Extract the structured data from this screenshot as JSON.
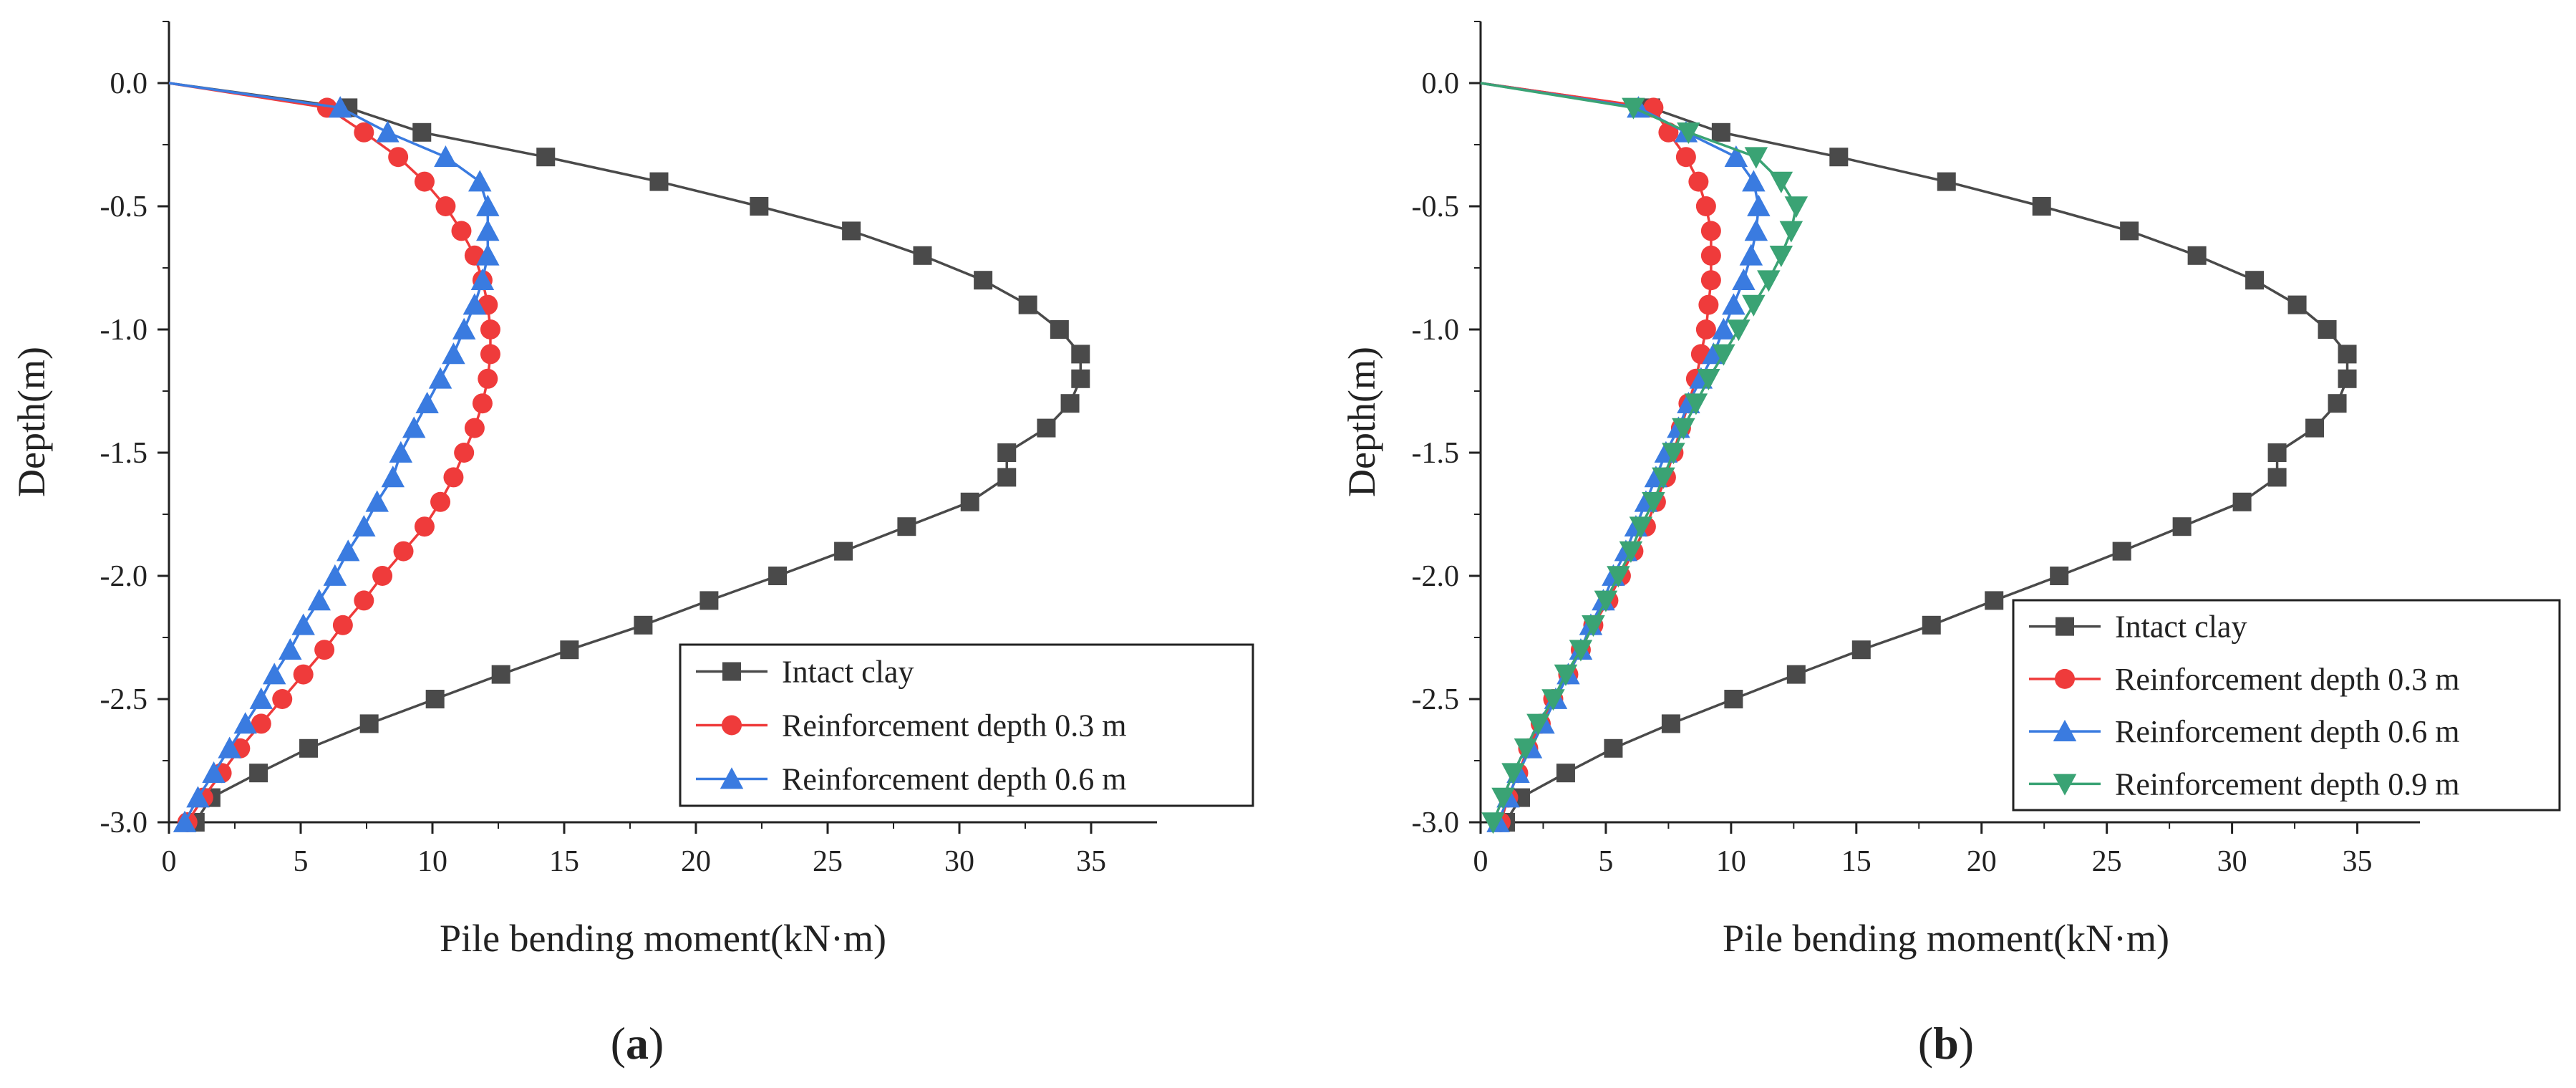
{
  "figure": {
    "panels": [
      {
        "id": "a",
        "label_open": "(",
        "label_letter": "a",
        "label_close": ")",
        "xlabel": "Pile bending moment(kN·m)",
        "ylabel": "Depth(m)"
      },
      {
        "id": "b",
        "label_open": "(",
        "label_letter": "b",
        "label_close": ")",
        "xlabel": "Pile bending moment(kN·m)",
        "ylabel": "Depth(m)"
      }
    ]
  },
  "chart_data": [
    {
      "type": "line",
      "title": "",
      "xlabel": "Pile bending moment(kN·m)",
      "ylabel": "Depth(m)",
      "xlim": [
        0,
        37.5
      ],
      "ylim": [
        -3.0,
        0.25
      ],
      "xticks": [
        0,
        5,
        10,
        15,
        20,
        25,
        30,
        35
      ],
      "yticks": [
        0.0,
        -0.5,
        -1.0,
        -1.5,
        -2.0,
        -2.5,
        -3.0
      ],
      "ytick_labels": [
        "0.0",
        "-0.5",
        "-1.0",
        "-1.5",
        "-2.0",
        "-2.5",
        "-3.0"
      ],
      "legend_position": "bottom-right",
      "series": [
        {
          "name": "Intact clay",
          "color": "#4a4a4a",
          "marker": "square",
          "x": [
            0,
            6.8,
            9.6,
            14.3,
            18.6,
            22.4,
            25.9,
            28.6,
            30.9,
            32.6,
            33.8,
            34.6,
            34.6,
            34.2,
            33.3,
            31.8,
            31.8,
            30.4,
            28.0,
            25.6,
            23.1,
            20.5,
            18.0,
            15.2,
            12.6,
            10.1,
            7.6,
            5.3,
            3.4,
            1.6,
            1.0
          ],
          "y": [
            0,
            -0.1,
            -0.2,
            -0.3,
            -0.4,
            -0.5,
            -0.6,
            -0.7,
            -0.8,
            -0.9,
            -1.0,
            -1.1,
            -1.2,
            -1.3,
            -1.4,
            -1.5,
            -1.6,
            -1.7,
            -1.8,
            -1.9,
            -2.0,
            -2.1,
            -2.2,
            -2.3,
            -2.4,
            -2.5,
            -2.6,
            -2.7,
            -2.8,
            -2.9,
            -3.0
          ]
        },
        {
          "name": "Reinforcement depth 0.3 m",
          "color": "#ef3b3b",
          "marker": "circle",
          "x": [
            0,
            6.0,
            7.4,
            8.7,
            9.7,
            10.5,
            11.1,
            11.6,
            11.9,
            12.1,
            12.2,
            12.2,
            12.1,
            11.9,
            11.6,
            11.2,
            10.8,
            10.3,
            9.7,
            8.9,
            8.1,
            7.4,
            6.6,
            5.9,
            5.1,
            4.3,
            3.5,
            2.7,
            2.0,
            1.3,
            0.7
          ],
          "y": [
            0,
            -0.1,
            -0.2,
            -0.3,
            -0.4,
            -0.5,
            -0.6,
            -0.7,
            -0.8,
            -0.9,
            -1.0,
            -1.1,
            -1.2,
            -1.3,
            -1.4,
            -1.5,
            -1.6,
            -1.7,
            -1.8,
            -1.9,
            -2.0,
            -2.1,
            -2.2,
            -2.3,
            -2.4,
            -2.5,
            -2.6,
            -2.7,
            -2.8,
            -2.9,
            -3.0
          ]
        },
        {
          "name": "Reinforcement depth 0.6 m",
          "color": "#3a7be0",
          "marker": "triangle-up",
          "x": [
            0,
            6.5,
            8.3,
            10.5,
            11.8,
            12.1,
            12.1,
            12.1,
            11.9,
            11.6,
            11.2,
            10.8,
            10.3,
            9.8,
            9.3,
            8.8,
            8.5,
            7.9,
            7.4,
            6.8,
            6.3,
            5.7,
            5.1,
            4.6,
            4.0,
            3.5,
            2.9,
            2.3,
            1.7,
            1.1,
            0.6
          ],
          "y": [
            0,
            -0.1,
            -0.2,
            -0.3,
            -0.4,
            -0.5,
            -0.6,
            -0.7,
            -0.8,
            -0.9,
            -1.0,
            -1.1,
            -1.2,
            -1.3,
            -1.4,
            -1.5,
            -1.6,
            -1.7,
            -1.8,
            -1.9,
            -2.0,
            -2.1,
            -2.2,
            -2.3,
            -2.4,
            -2.5,
            -2.6,
            -2.7,
            -2.8,
            -2.9,
            -3.0
          ]
        }
      ]
    },
    {
      "type": "line",
      "title": "",
      "xlabel": "Pile bending moment(kN·m)",
      "ylabel": "Depth(m)",
      "xlim": [
        0,
        37.5
      ],
      "ylim": [
        -3.0,
        0.25
      ],
      "xticks": [
        0,
        5,
        10,
        15,
        20,
        25,
        30,
        35
      ],
      "yticks": [
        0.0,
        -0.5,
        -1.0,
        -1.5,
        -2.0,
        -2.5,
        -3.0
      ],
      "ytick_labels": [
        "0.0",
        "-0.5",
        "-1.0",
        "-1.5",
        "-2.0",
        "-2.5",
        "-3.0"
      ],
      "legend_position": "bottom-right",
      "series": [
        {
          "name": "Intact clay",
          "color": "#4a4a4a",
          "marker": "square",
          "x": [
            0,
            6.8,
            9.6,
            14.3,
            18.6,
            22.4,
            25.9,
            28.6,
            30.9,
            32.6,
            33.8,
            34.6,
            34.6,
            34.2,
            33.3,
            31.8,
            31.8,
            30.4,
            28.0,
            25.6,
            23.1,
            20.5,
            18.0,
            15.2,
            12.6,
            10.1,
            7.6,
            5.3,
            3.4,
            1.6,
            1.0
          ],
          "y": [
            0,
            -0.1,
            -0.2,
            -0.3,
            -0.4,
            -0.5,
            -0.6,
            -0.7,
            -0.8,
            -0.9,
            -1.0,
            -1.1,
            -1.2,
            -1.3,
            -1.4,
            -1.5,
            -1.6,
            -1.7,
            -1.8,
            -1.9,
            -2.0,
            -2.1,
            -2.2,
            -2.3,
            -2.4,
            -2.5,
            -2.6,
            -2.7,
            -2.8,
            -2.9,
            -3.0
          ]
        },
        {
          "name": "Reinforcement depth 0.3 m",
          "color": "#ef3b3b",
          "marker": "circle",
          "x": [
            0,
            6.9,
            7.5,
            8.2,
            8.7,
            9.0,
            9.2,
            9.2,
            9.2,
            9.1,
            9.0,
            8.8,
            8.6,
            8.3,
            8.0,
            7.7,
            7.4,
            7.0,
            6.6,
            6.1,
            5.6,
            5.1,
            4.5,
            4.0,
            3.5,
            2.9,
            2.4,
            1.9,
            1.5,
            1.1,
            0.8
          ],
          "y": [
            0,
            -0.1,
            -0.2,
            -0.3,
            -0.4,
            -0.5,
            -0.6,
            -0.7,
            -0.8,
            -0.9,
            -1.0,
            -1.1,
            -1.2,
            -1.3,
            -1.4,
            -1.5,
            -1.6,
            -1.7,
            -1.8,
            -1.9,
            -2.0,
            -2.1,
            -2.2,
            -2.3,
            -2.4,
            -2.5,
            -2.6,
            -2.7,
            -2.8,
            -2.9,
            -3.0
          ]
        },
        {
          "name": "Reinforcement depth 0.6 m",
          "color": "#3a7be0",
          "marker": "triangle-up",
          "x": [
            0,
            6.3,
            8.2,
            10.2,
            10.9,
            11.1,
            11.0,
            10.8,
            10.5,
            10.1,
            9.7,
            9.3,
            8.8,
            8.3,
            7.9,
            7.4,
            7.0,
            6.6,
            6.2,
            5.8,
            5.3,
            4.9,
            4.4,
            4.0,
            3.5,
            3.0,
            2.5,
            2.0,
            1.5,
            1.1,
            0.7
          ],
          "y": [
            0,
            -0.1,
            -0.2,
            -0.3,
            -0.4,
            -0.5,
            -0.6,
            -0.7,
            -0.8,
            -0.9,
            -1.0,
            -1.1,
            -1.2,
            -1.3,
            -1.4,
            -1.5,
            -1.6,
            -1.7,
            -1.8,
            -1.9,
            -2.0,
            -2.1,
            -2.2,
            -2.3,
            -2.4,
            -2.5,
            -2.6,
            -2.7,
            -2.8,
            -2.9,
            -3.0
          ]
        },
        {
          "name": "Reinforcement depth 0.9 m",
          "color": "#3aa374",
          "marker": "triangle-down",
          "x": [
            0,
            6.1,
            8.3,
            11.0,
            12.0,
            12.6,
            12.4,
            12.0,
            11.5,
            10.9,
            10.3,
            9.7,
            9.1,
            8.6,
            8.1,
            7.7,
            7.3,
            6.9,
            6.4,
            6.0,
            5.5,
            5.0,
            4.5,
            4.0,
            3.4,
            2.9,
            2.3,
            1.8,
            1.3,
            0.9,
            0.5
          ],
          "y": [
            0,
            -0.1,
            -0.2,
            -0.3,
            -0.4,
            -0.5,
            -0.6,
            -0.7,
            -0.8,
            -0.9,
            -1.0,
            -1.1,
            -1.2,
            -1.3,
            -1.4,
            -1.5,
            -1.6,
            -1.7,
            -1.8,
            -1.9,
            -2.0,
            -2.1,
            -2.2,
            -2.3,
            -2.4,
            -2.5,
            -2.6,
            -2.7,
            -2.8,
            -2.9,
            -3.0
          ]
        }
      ]
    }
  ]
}
